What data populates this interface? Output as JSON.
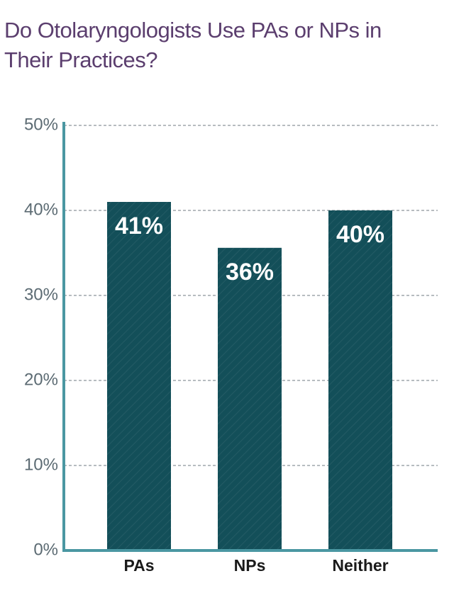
{
  "chart_data": {
    "type": "bar",
    "title": "Do Otolaryngologists Use PAs or NPs in Their Practices?",
    "categories": [
      "PAs",
      "NPs",
      "Neither"
    ],
    "values": [
      41,
      35.6,
      40
    ],
    "value_labels": [
      "41%",
      "36%",
      "40%"
    ],
    "color": "#134f59",
    "ylim": [
      0,
      50
    ],
    "yticks": [
      {
        "value": 0,
        "label": "0%"
      },
      {
        "value": 10,
        "label": "10%"
      },
      {
        "value": 20,
        "label": "20%"
      },
      {
        "value": 30,
        "label": "30%"
      },
      {
        "value": 40,
        "label": "40%"
      },
      {
        "value": 50,
        "label": "50%"
      }
    ],
    "grid": true
  }
}
